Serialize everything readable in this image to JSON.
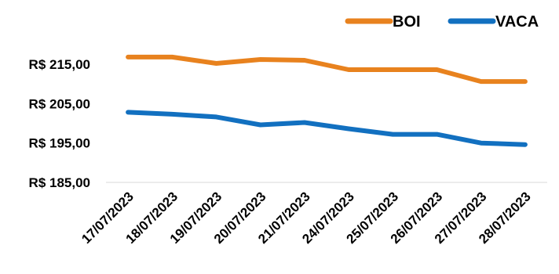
{
  "chart_data": {
    "type": "line",
    "title": "",
    "xlabel": "",
    "ylabel": "",
    "categories": [
      "17/07/2023",
      "18/07/2023",
      "19/07/2023",
      "20/07/2023",
      "21/07/2023",
      "24/07/2023",
      "25/07/2023",
      "26/07/2023",
      "27/07/2023",
      "28/07/2023"
    ],
    "series": [
      {
        "name": "BOI",
        "color": "#E8821E",
        "values": [
          216.8,
          216.8,
          215.2,
          216.2,
          216.0,
          213.6,
          213.6,
          213.6,
          210.6,
          210.6
        ]
      },
      {
        "name": "VACA",
        "color": "#1270C0",
        "values": [
          202.8,
          202.3,
          201.6,
          199.6,
          200.2,
          198.6,
          197.2,
          197.2,
          195.0,
          194.6
        ]
      }
    ],
    "ylim": [
      185,
      215
    ],
    "yticks": [
      "R$ 185,00",
      "R$ 195,00",
      "R$ 205,00",
      "R$ 215,00"
    ],
    "ytick_values": [
      185,
      195,
      205,
      215
    ],
    "grid": false,
    "legend_position": "top-right"
  }
}
